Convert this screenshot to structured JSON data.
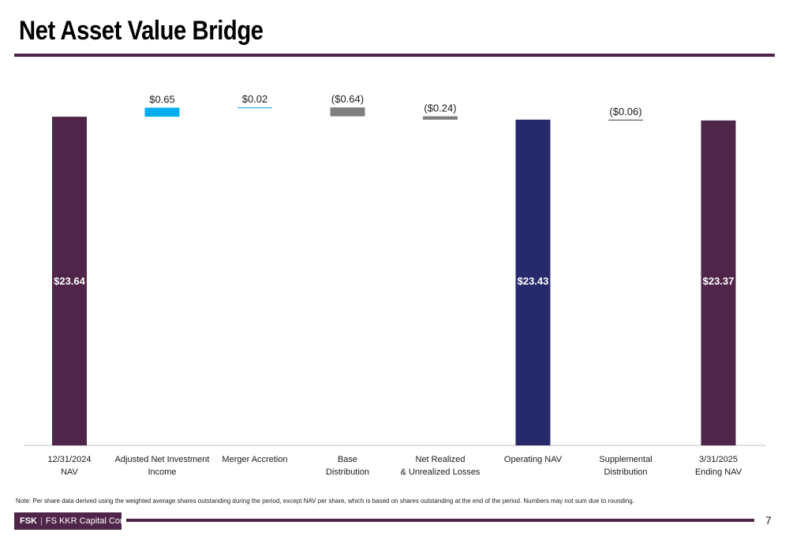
{
  "title": "Net Asset Value Bridge",
  "note": "Note: Per share data derived using the weighted average shares outstanding during the period, except NAV per share, which is based on shares outstanding at the end of the period. Numbers may not sum due to rounding.",
  "footer": {
    "ticker": "FSK",
    "separator": "|",
    "company": "FS KKR Capital Corp."
  },
  "page_number": "7",
  "colors": {
    "brand_purple": "#4f2649",
    "navy": "#262a6b",
    "light_blue": "#00aeef",
    "gray": "#7f7f7f",
    "dark_gray": "#404040"
  },
  "chart_data": {
    "type": "waterfall",
    "title": "Net Asset Value Bridge",
    "ylim": [
      0,
      23.7
    ],
    "bars": [
      {
        "label_lines": [
          "12/31/2024",
          "NAV"
        ],
        "kind": "total",
        "value": 23.64,
        "display": "$23.64",
        "color": "#4f2649"
      },
      {
        "label_lines": [
          "Adjusted Net Investment",
          "Income"
        ],
        "kind": "delta",
        "value": 0.65,
        "display": "$0.65",
        "color": "#00aeef"
      },
      {
        "label_lines": [
          "Merger Accretion"
        ],
        "kind": "delta",
        "value": 0.02,
        "display": "$0.02",
        "color": "#00aeef"
      },
      {
        "label_lines": [
          "Base",
          "Distribution"
        ],
        "kind": "delta",
        "value": -0.64,
        "display": "($0.64)",
        "color": "#7f7f7f"
      },
      {
        "label_lines": [
          "Net Realized",
          "& Unrealized Losses"
        ],
        "kind": "delta",
        "value": -0.24,
        "display": "($0.24)",
        "color": "#7f7f7f"
      },
      {
        "label_lines": [
          "Operating NAV"
        ],
        "kind": "total",
        "value": 23.43,
        "display": "$23.43",
        "color": "#262a6b"
      },
      {
        "label_lines": [
          "Supplemental",
          "Distribution"
        ],
        "kind": "delta",
        "value": -0.06,
        "display": "($0.06)",
        "color": "#404040"
      },
      {
        "label_lines": [
          "3/31/2025",
          "Ending NAV"
        ],
        "kind": "total",
        "value": 23.37,
        "display": "$23.37",
        "color": "#4f2649"
      }
    ]
  }
}
